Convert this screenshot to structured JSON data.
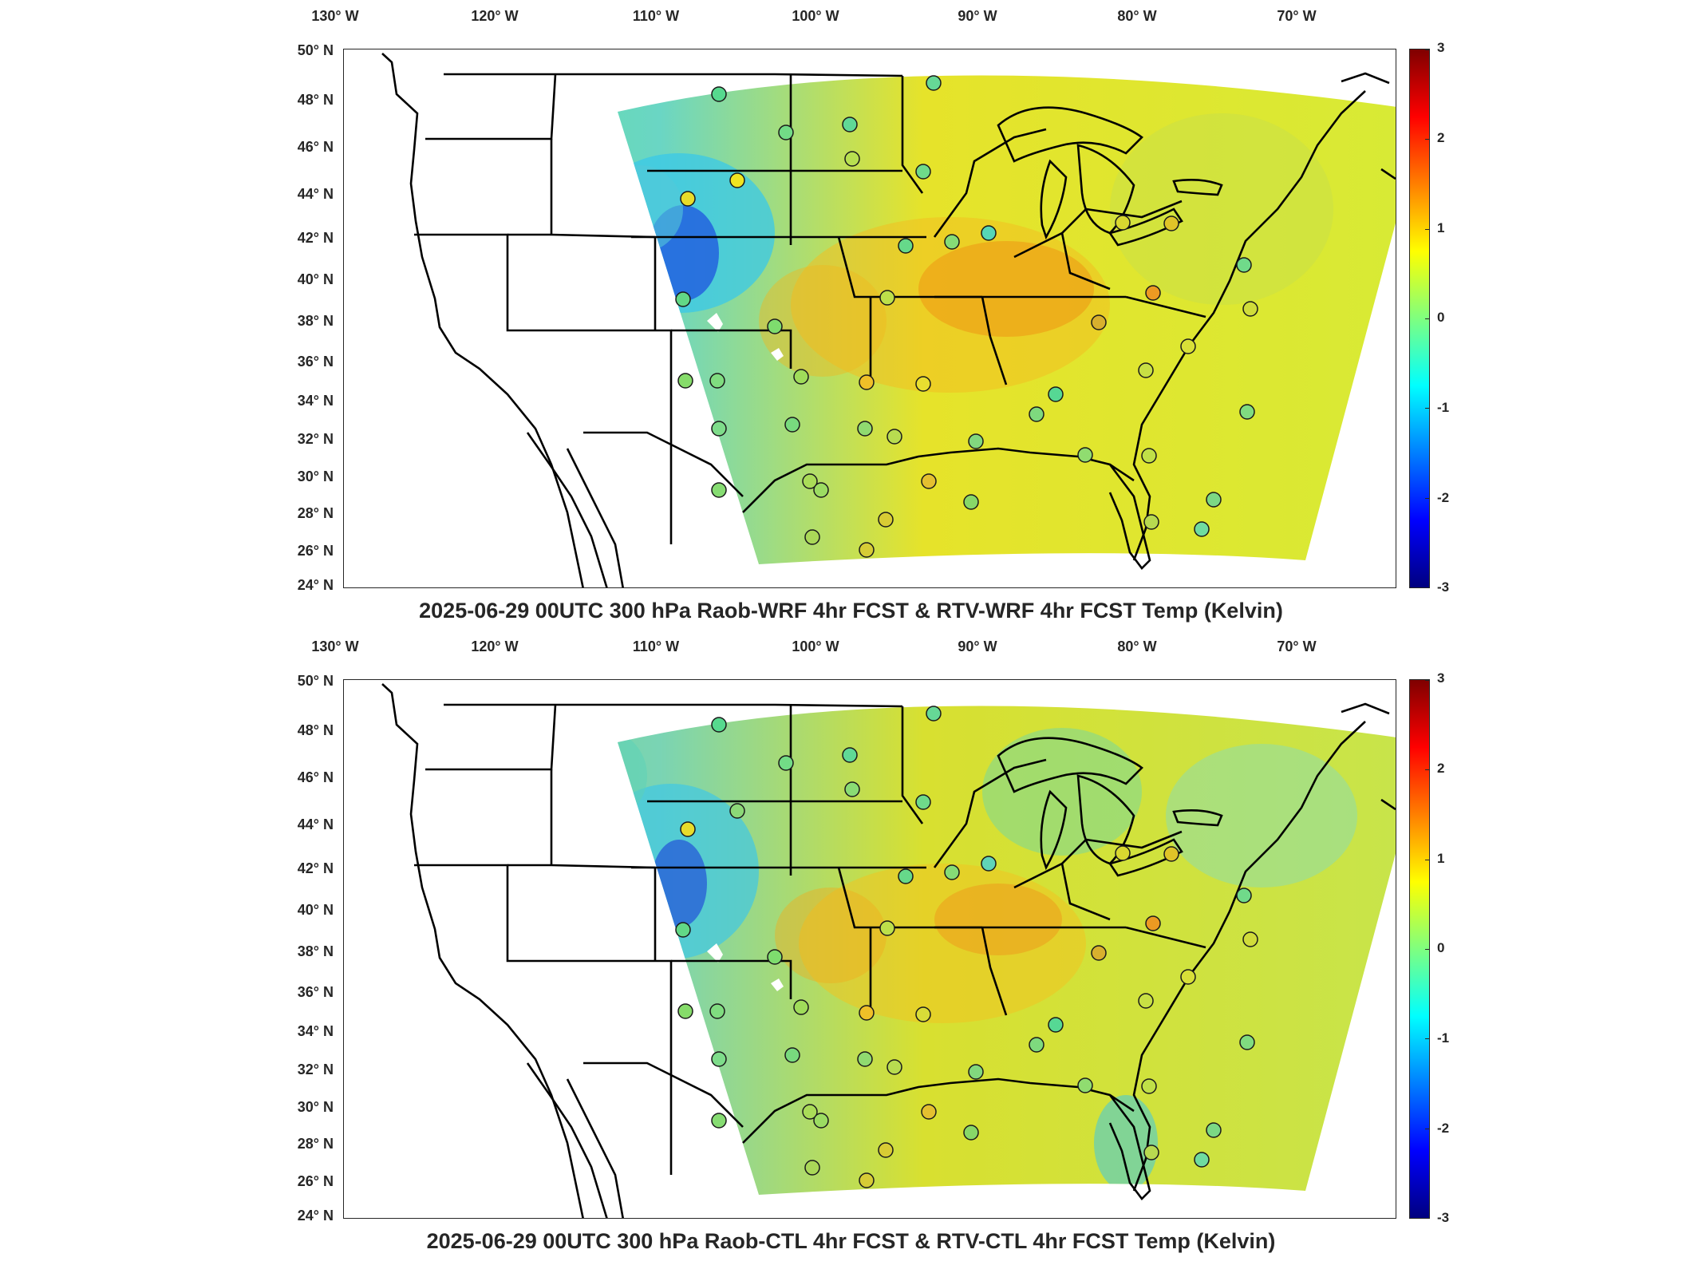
{
  "colors": {
    "land_outline": "#000000",
    "background": "#ffffff",
    "station_marker_stroke": "#1a1a1a",
    "colormap": "jet"
  },
  "map": {
    "lon_labels": [
      "130° W",
      "120° W",
      "110° W",
      "100° W",
      "90° W",
      "80° W",
      "70° W"
    ],
    "lat_labels": [
      "50° N",
      "48° N",
      "46° N",
      "44° N",
      "42° N",
      "40° N",
      "38° N",
      "36° N",
      "34° N",
      "32° N",
      "30° N",
      "28° N",
      "26° N",
      "24° N"
    ],
    "colorbar": {
      "ticks": [
        "3",
        "2",
        "1",
        "0",
        "-1",
        "-2",
        "-3"
      ],
      "range": [
        -3,
        3
      ],
      "unit": "Kelvin"
    }
  },
  "panels": [
    {
      "title": "2025-06-29 00UTC 300 hPa Raob-WRF 4hr FCST & RTV-WRF 4hr FCST Temp (Kelvin)",
      "experiment": "WRF"
    },
    {
      "title": "2025-06-29 00UTC 300 hPa Raob-CTL 4hr FCST & RTV-CTL 4hr FCST Temp (Kelvin)",
      "experiment": "CTL"
    }
  ]
}
